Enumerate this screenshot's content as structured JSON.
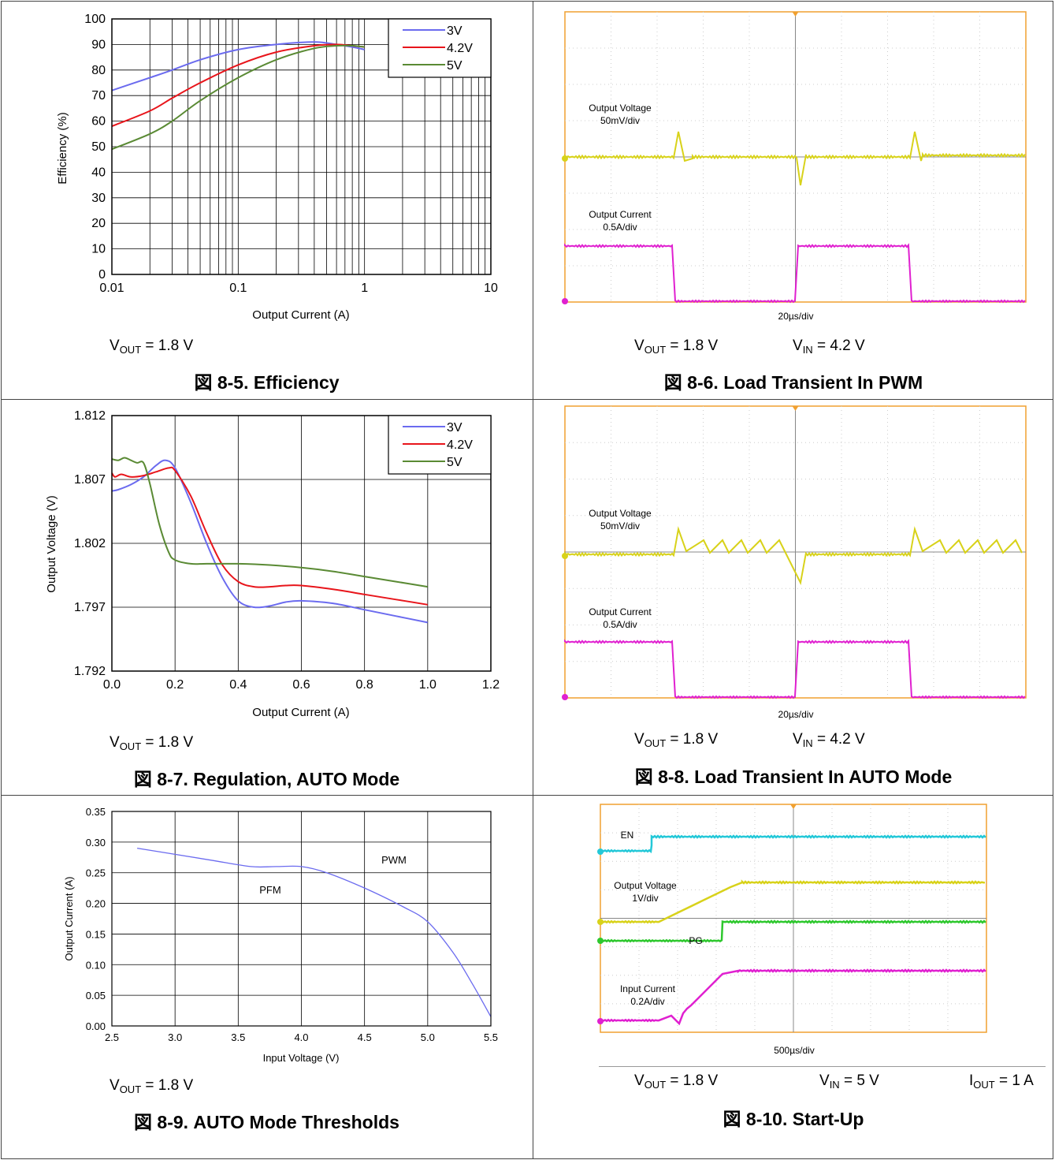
{
  "panels": [
    {
      "id": "fig-8-5",
      "caption": "図 8-5. Efficiency",
      "conditions": [
        {
          "main": "V",
          "sub": "OUT",
          "rest": " = 1.8 V"
        }
      ]
    },
    {
      "id": "fig-8-6",
      "caption": "図 8-6. Load Transient In PWM",
      "conditions": [
        {
          "main": "V",
          "sub": "OUT",
          "rest": " = 1.8 V"
        },
        {
          "main": "V",
          "sub": "IN",
          "rest": " = 4.2 V"
        }
      ]
    },
    {
      "id": "fig-8-7",
      "caption": "図 8-7. Regulation, AUTO Mode",
      "conditions": [
        {
          "main": "V",
          "sub": "OUT",
          "rest": " = 1.8 V"
        }
      ]
    },
    {
      "id": "fig-8-8",
      "caption": "図 8-8. Load Transient In AUTO Mode",
      "conditions": [
        {
          "main": "V",
          "sub": "OUT",
          "rest": " = 1.8 V"
        },
        {
          "main": "V",
          "sub": "IN",
          "rest": " = 4.2 V"
        }
      ]
    },
    {
      "id": "fig-8-9",
      "caption": "図 8-9. AUTO Mode Thresholds",
      "conditions": [
        {
          "main": "V",
          "sub": "OUT",
          "rest": " = 1.8 V"
        }
      ]
    },
    {
      "id": "fig-8-10",
      "caption": "図 8-10. Start-Up",
      "conditions": [
        {
          "main": "V",
          "sub": "OUT",
          "rest": " = 1.8 V"
        },
        {
          "main": "V",
          "sub": "IN",
          "rest": " = 5 V"
        },
        {
          "main": "I",
          "sub": "OUT",
          "rest": " = 1 A"
        }
      ]
    }
  ],
  "colors": {
    "s3v": "#6b6bef",
    "s42v": "#e8151b",
    "s5v": "#5a8a34",
    "scope_yellow": "#d8d21a",
    "scope_magenta": "#e020d0",
    "scope_cyan": "#24c8d8",
    "scope_green": "#2ec82e",
    "scope_border": "#f0a030"
  },
  "chart_data": [
    {
      "type": "line",
      "xlabel": "Output Current (A)",
      "ylabel": "Efficiency (%)",
      "x_scale": "log",
      "xlim": [
        0.01,
        10
      ],
      "ylim": [
        0,
        100
      ],
      "x_ticks": [
        "0.01",
        "0.1",
        "1",
        "10"
      ],
      "y_ticks": [
        "0",
        "10",
        "20",
        "30",
        "40",
        "50",
        "60",
        "70",
        "80",
        "90",
        "100"
      ],
      "legend": "top-right",
      "grid": true,
      "series": [
        {
          "name": "3V",
          "x": [
            0.01,
            0.02,
            0.03,
            0.05,
            0.1,
            0.2,
            0.4,
            0.6,
            0.8,
            1.0
          ],
          "values": [
            72,
            77,
            80,
            84,
            88,
            90,
            91,
            90,
            89,
            88
          ]
        },
        {
          "name": "4.2V",
          "x": [
            0.01,
            0.02,
            0.03,
            0.05,
            0.1,
            0.2,
            0.4,
            0.6,
            0.8,
            1.0
          ],
          "values": [
            58,
            64,
            69,
            75,
            82,
            87,
            89.5,
            90,
            89.5,
            89
          ]
        },
        {
          "name": "5V",
          "x": [
            0.01,
            0.02,
            0.03,
            0.05,
            0.1,
            0.2,
            0.4,
            0.6,
            0.8,
            1.0
          ],
          "values": [
            49,
            55,
            60,
            68,
            77,
            84,
            88.5,
            89.5,
            89.5,
            89
          ]
        }
      ]
    },
    {
      "type": "line",
      "xlabel": "Output Current (A)",
      "ylabel": "Output Voltage (V)",
      "xlim": [
        0,
        1.2
      ],
      "ylim": [
        1.792,
        1.812
      ],
      "x_ticks": [
        "0.0",
        "0.2",
        "0.4",
        "0.6",
        "0.8",
        "1.0",
        "1.2"
      ],
      "y_ticks": [
        "1.792",
        "1.797",
        "1.802",
        "1.807",
        "1.812"
      ],
      "legend": "top-right",
      "grid": true,
      "series": [
        {
          "name": "3V",
          "x": [
            0.0,
            0.02,
            0.06,
            0.1,
            0.14,
            0.17,
            0.2,
            0.25,
            0.3,
            0.35,
            0.4,
            0.45,
            0.5,
            0.55,
            0.6,
            0.7,
            0.8,
            0.9,
            1.0
          ],
          "values": [
            1.8061,
            1.8062,
            1.8066,
            1.8072,
            1.8081,
            1.8085,
            1.8079,
            1.8052,
            1.802,
            1.7993,
            1.7975,
            1.797,
            1.7971,
            1.7974,
            1.7975,
            1.7973,
            1.7968,
            1.7963,
            1.7958
          ]
        },
        {
          "name": "4.2V",
          "x": [
            0.0,
            0.01,
            0.03,
            0.06,
            0.1,
            0.14,
            0.18,
            0.2,
            0.25,
            0.3,
            0.35,
            0.4,
            0.45,
            0.5,
            0.55,
            0.6,
            0.7,
            0.8,
            0.9,
            1.0
          ],
          "values": [
            1.8075,
            1.8072,
            1.8074,
            1.8072,
            1.8073,
            1.8076,
            1.8079,
            1.8077,
            1.8057,
            1.8028,
            1.8003,
            1.799,
            1.7986,
            1.7986,
            1.7987,
            1.7987,
            1.7984,
            1.798,
            1.7976,
            1.7972
          ]
        },
        {
          "name": "5V",
          "x": [
            0.0,
            0.02,
            0.04,
            0.06,
            0.08,
            0.1,
            0.12,
            0.15,
            0.18,
            0.2,
            0.25,
            0.3,
            0.4,
            0.5,
            0.6,
            0.7,
            0.8,
            0.9,
            1.0
          ],
          "values": [
            1.8086,
            1.8085,
            1.8087,
            1.8085,
            1.8083,
            1.8083,
            1.8067,
            1.8035,
            1.8013,
            1.8007,
            1.8004,
            1.8004,
            1.8004,
            1.8003,
            1.8001,
            1.7998,
            1.7994,
            1.799,
            1.7986
          ]
        }
      ]
    },
    {
      "type": "line",
      "xlabel": "Input Voltage (V)",
      "ylabel": "Output Current (A)",
      "xlim": [
        2.5,
        5.5
      ],
      "ylim": [
        0,
        0.35
      ],
      "x_ticks": [
        "2.5",
        "3.0",
        "3.5",
        "4.0",
        "4.5",
        "5.0",
        "5.5"
      ],
      "y_ticks": [
        "0.00",
        "0.05",
        "0.10",
        "0.15",
        "0.20",
        "0.25",
        "0.30",
        "0.35"
      ],
      "grid": true,
      "annotations": [
        "PFM",
        "PWM"
      ],
      "series": [
        {
          "x": [
            2.7,
            3.0,
            3.3,
            3.6,
            3.8,
            4.0,
            4.2,
            4.5,
            4.8,
            5.0,
            5.2,
            5.35,
            5.5
          ],
          "values": [
            0.29,
            0.28,
            0.27,
            0.26,
            0.26,
            0.26,
            0.25,
            0.225,
            0.195,
            0.17,
            0.12,
            0.07,
            0.015
          ]
        }
      ]
    },
    {
      "type": "line",
      "xlabel": "20µs/div",
      "traces": [
        {
          "label": "Output Voltage",
          "scale": "50mV/div"
        },
        {
          "label": "Output Current",
          "scale": "0.5A/div"
        }
      ]
    },
    {
      "type": "line",
      "xlabel": "20µs/div",
      "traces": [
        {
          "label": "Output Voltage",
          "scale": "50mV/div"
        },
        {
          "label": "Output Current",
          "scale": "0.5A/div"
        }
      ]
    },
    {
      "type": "line",
      "xlabel": "500µs/div",
      "traces": [
        {
          "label": "EN",
          "scale": ""
        },
        {
          "label": "Output Voltage",
          "scale": "1V/div"
        },
        {
          "label": "PG",
          "scale": ""
        },
        {
          "label": "Input Current",
          "scale": "0.2A/div"
        }
      ]
    }
  ]
}
